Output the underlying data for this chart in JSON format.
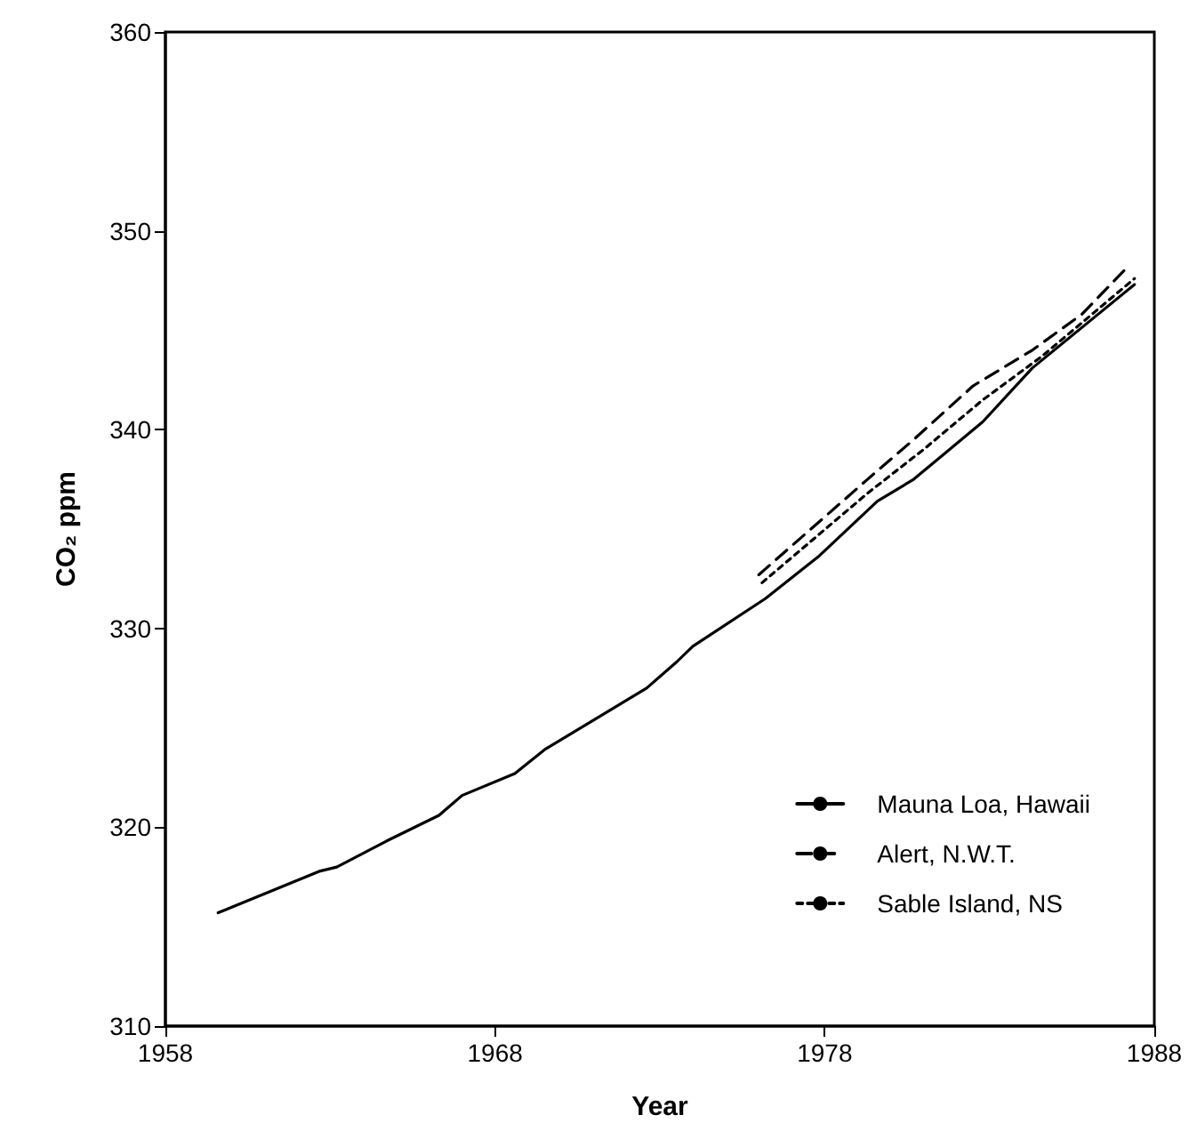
{
  "chart_data": {
    "type": "line",
    "xlabel": "Year",
    "ylabel": "CO₂ ppm",
    "xlim": [
      1958,
      1988
    ],
    "xticks": [
      1958,
      1968,
      1978,
      1988
    ],
    "ylim": [
      310,
      360
    ],
    "yticks": [
      310,
      320,
      330,
      340,
      350,
      360
    ],
    "grid": false,
    "legend": "bottom right",
    "marker": "none",
    "series": [
      {
        "name": "Mauna Loa, Hawaii",
        "color": "#000000",
        "line_style": "solid",
        "x": [
          1959.6,
          1962.7,
          1963.2,
          1964.7,
          1966.3,
          1967.0,
          1968.6,
          1969.5,
          1970.8,
          1972.6,
          1973.5,
          1974.0,
          1976.2,
          1977.8,
          1979.6,
          1980.7,
          1982.8,
          1984.3,
          1987.4
        ],
        "values": [
          315.7,
          317.8,
          318.0,
          319.3,
          320.6,
          321.6,
          322.7,
          323.9,
          325.2,
          327.0,
          328.3,
          329.1,
          331.5,
          333.6,
          336.4,
          337.5,
          340.4,
          343.1,
          347.3
        ]
      },
      {
        "name": "Alert, N.W.T.",
        "color": "#000000",
        "line_style": "dashed",
        "x": [
          1976.0,
          1979.3,
          1980.7,
          1982.5,
          1984.3,
          1985.8,
          1987.2
        ],
        "values": [
          332.7,
          337.5,
          339.5,
          342.2,
          344.0,
          345.8,
          348.2
        ]
      },
      {
        "name": "Sable Island, NS",
        "color": "#000000",
        "line_style": "dotted",
        "x": [
          1976.1,
          1979.3,
          1981.0,
          1982.8,
          1984.6,
          1987.4
        ],
        "values": [
          332.3,
          336.8,
          339.0,
          341.5,
          343.7,
          347.6
        ]
      }
    ]
  }
}
